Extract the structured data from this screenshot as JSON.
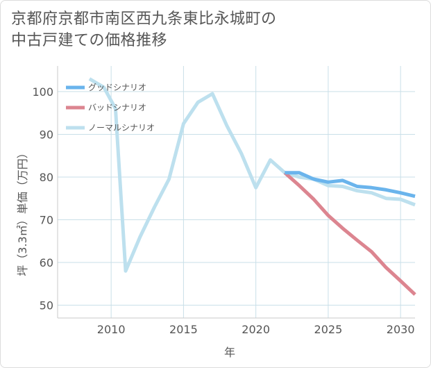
{
  "title_lines": [
    "京都府京都市南区西九条東比永城町の",
    "中古戸建ての価格推移"
  ],
  "chart_data": {
    "type": "line",
    "title": "京都府京都市南区西九条東比永城町の中古戸建ての価格推移",
    "xlabel": "年",
    "ylabel": "坪（3.3㎡）単価（万円）",
    "xlim": [
      2006.3,
      2031
    ],
    "ylim": [
      47,
      106
    ],
    "xticks": [
      2010,
      2015,
      2020,
      2025,
      2030
    ],
    "yticks": [
      50,
      60,
      70,
      80,
      90,
      100
    ],
    "grid": true,
    "legend_position": "top-left",
    "series": [
      {
        "name": "グッドシナリオ",
        "color": "#6ab4ec",
        "points": [
          [
            2022,
            81
          ],
          [
            2023,
            81
          ],
          [
            2024,
            79.5
          ],
          [
            2025,
            78.8
          ],
          [
            2026,
            79.2
          ],
          [
            2027,
            77.8
          ],
          [
            2028,
            77.5
          ],
          [
            2029,
            77
          ],
          [
            2030,
            76.3
          ],
          [
            2031,
            75.5
          ]
        ]
      },
      {
        "name": "バッドシナリオ",
        "color": "#dc8590",
        "points": [
          [
            2022,
            81
          ],
          [
            2023,
            78
          ],
          [
            2024,
            74.8
          ],
          [
            2025,
            71
          ],
          [
            2026,
            68
          ],
          [
            2027,
            65.2
          ],
          [
            2028,
            62.5
          ],
          [
            2029,
            58.8
          ],
          [
            2030,
            55.7
          ],
          [
            2031,
            52.5
          ]
        ]
      },
      {
        "name": "ノーマルシナリオ",
        "color": "#bde0ee",
        "points": [
          [
            2008.5,
            103
          ],
          [
            2009.5,
            101
          ],
          [
            2010.3,
            96
          ],
          [
            2011,
            58
          ],
          [
            2012,
            66
          ],
          [
            2013,
            73
          ],
          [
            2014,
            79.5
          ],
          [
            2015,
            92.5
          ],
          [
            2016,
            97.5
          ],
          [
            2017,
            99.5
          ],
          [
            2018,
            92
          ],
          [
            2019,
            85.5
          ],
          [
            2020,
            77.5
          ],
          [
            2021,
            84
          ],
          [
            2022,
            81
          ],
          [
            2023,
            80
          ],
          [
            2024,
            79.5
          ],
          [
            2025,
            78
          ],
          [
            2026,
            77.8
          ],
          [
            2027,
            76.8
          ],
          [
            2028,
            76.3
          ],
          [
            2029,
            75
          ],
          [
            2030,
            74.8
          ],
          [
            2031,
            73.5
          ]
        ]
      }
    ]
  }
}
